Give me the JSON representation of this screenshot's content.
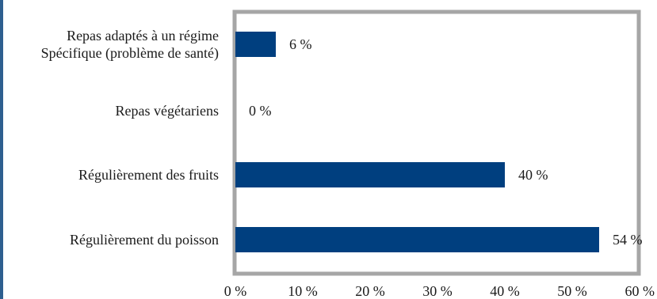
{
  "colors": {
    "bar": "#003f7f",
    "frame": "#a6a6a6",
    "left_rule": "#2e5f8f",
    "text": "#1a1a1a"
  },
  "chart_data": {
    "type": "bar",
    "orientation": "horizontal",
    "title": "",
    "xlabel": "",
    "ylabel": "",
    "grid": false,
    "legend": "none",
    "xlim": [
      0,
      60
    ],
    "x_ticks": [
      0,
      10,
      20,
      30,
      40,
      50,
      60
    ],
    "x_tick_labels": [
      "0 %",
      "10 %",
      "20 %",
      "30 %",
      "40 %",
      "50 %",
      "60 %"
    ],
    "categories": [
      [
        "Repas adaptés à un régime",
        "Spécifique (problème de santé)"
      ],
      [
        "Repas végétariens"
      ],
      [
        "Régulièrement des fruits"
      ],
      [
        "Régulièrement du poisson"
      ]
    ],
    "values": [
      6,
      0,
      40,
      54
    ],
    "data_labels": [
      "6 %",
      "0 %",
      "40 %",
      "54 %"
    ]
  }
}
